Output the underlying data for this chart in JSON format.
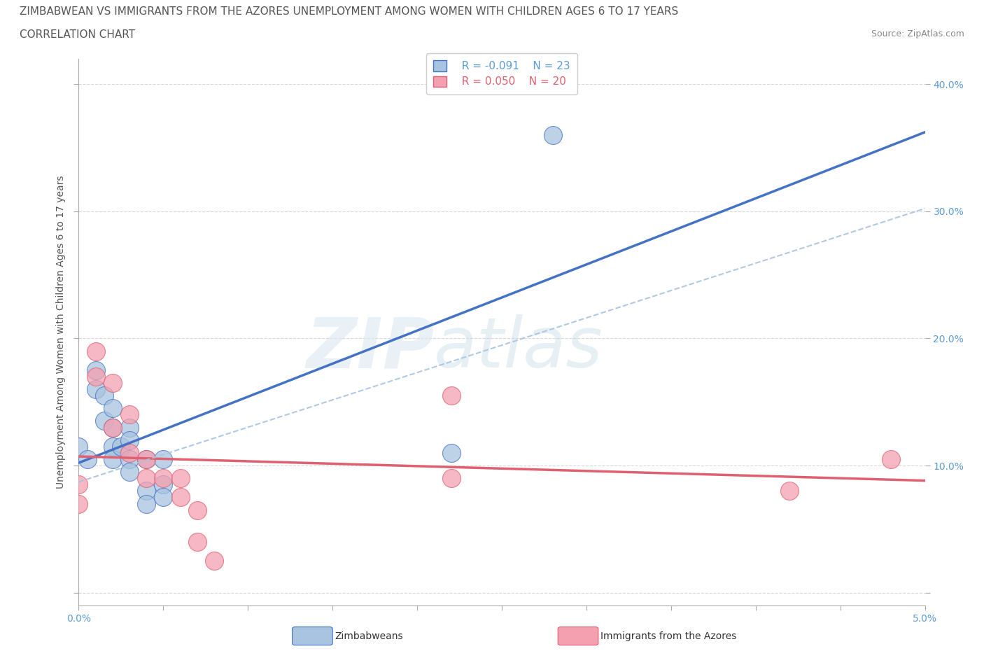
{
  "title_line1": "ZIMBABWEAN VS IMMIGRANTS FROM THE AZORES UNEMPLOYMENT AMONG WOMEN WITH CHILDREN AGES 6 TO 17 YEARS",
  "title_line2": "CORRELATION CHART",
  "source": "Source: ZipAtlas.com",
  "ylabel": "Unemployment Among Women with Children Ages 6 to 17 years",
  "xlim": [
    0.0,
    0.05
  ],
  "ylim": [
    -0.01,
    0.42
  ],
  "xticks": [
    0.0,
    0.005,
    0.01,
    0.015,
    0.02,
    0.025,
    0.03,
    0.035,
    0.04,
    0.045,
    0.05
  ],
  "xticklabels": [
    "0.0%",
    "",
    "",
    "",
    "",
    "",
    "",
    "",
    "",
    "",
    "5.0%"
  ],
  "yticks": [
    0.0,
    0.1,
    0.2,
    0.3,
    0.4
  ],
  "yticklabels": [
    "",
    "10.0%",
    "20.0%",
    "30.0%",
    "40.0%"
  ],
  "blue_label": "Zimbabweans",
  "pink_label": "Immigrants from the Azores",
  "legend_r_blue": "R = -0.091",
  "legend_n_blue": "N = 23",
  "legend_r_pink": "R = 0.050",
  "legend_n_pink": "N = 20",
  "blue_color": "#a8c4e0",
  "pink_color": "#f4a0b0",
  "blue_line_color": "#4472c4",
  "pink_line_color": "#e06070",
  "background_color": "#ffffff",
  "grid_color": "#d8d8d8",
  "tick_color": "#5b9bd5",
  "zimbabwean_x": [
    0.0,
    0.0005,
    0.001,
    0.001,
    0.0015,
    0.0015,
    0.002,
    0.002,
    0.002,
    0.002,
    0.0025,
    0.003,
    0.003,
    0.003,
    0.003,
    0.004,
    0.004,
    0.004,
    0.005,
    0.005,
    0.005,
    0.022,
    0.028
  ],
  "zimbabwean_y": [
    0.115,
    0.105,
    0.175,
    0.16,
    0.155,
    0.135,
    0.145,
    0.13,
    0.115,
    0.105,
    0.115,
    0.13,
    0.12,
    0.105,
    0.095,
    0.08,
    0.07,
    0.105,
    0.105,
    0.085,
    0.075,
    0.11,
    0.36
  ],
  "azores_x": [
    0.0,
    0.0,
    0.001,
    0.001,
    0.002,
    0.002,
    0.003,
    0.003,
    0.004,
    0.004,
    0.005,
    0.006,
    0.006,
    0.007,
    0.007,
    0.008,
    0.022,
    0.022,
    0.042,
    0.048
  ],
  "azores_y": [
    0.085,
    0.07,
    0.19,
    0.17,
    0.165,
    0.13,
    0.14,
    0.11,
    0.105,
    0.09,
    0.09,
    0.09,
    0.075,
    0.065,
    0.04,
    0.025,
    0.155,
    0.09,
    0.08,
    0.105
  ],
  "title_fontsize": 11,
  "subtitle_fontsize": 11,
  "axis_label_fontsize": 10,
  "tick_fontsize": 10,
  "legend_fontsize": 11,
  "source_fontsize": 9
}
